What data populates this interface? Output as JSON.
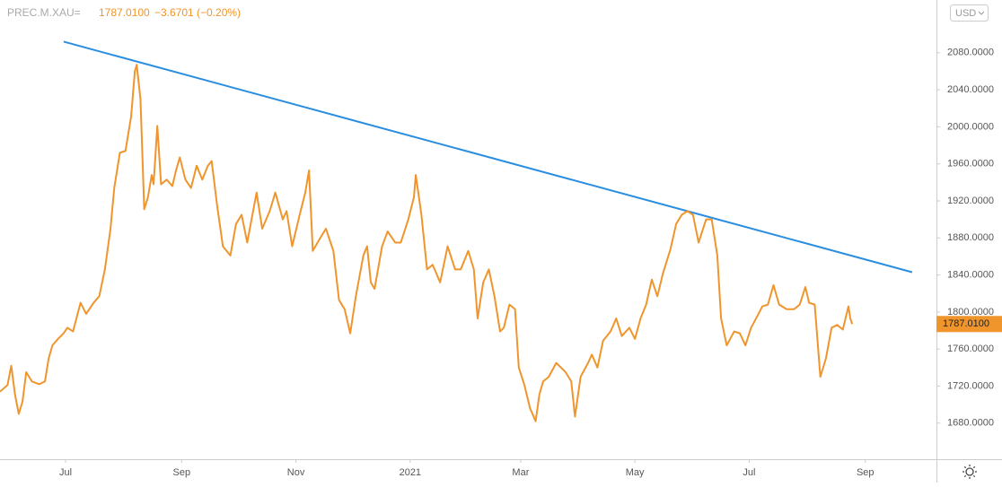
{
  "chart_data": {
    "type": "line",
    "symbol": "PREC.M.XAU=",
    "price_label": "1787.0100",
    "change_label": "−3.6701 (−0.20%)",
    "currency": "USD",
    "color": "#f0952c",
    "x": [
      -35,
      -31,
      -29,
      -27,
      -25,
      -23,
      -21,
      -18,
      -14,
      -11,
      -9,
      -7,
      -4,
      -1,
      1,
      4,
      8,
      11,
      15,
      18,
      21,
      24,
      26,
      29,
      32,
      35,
      37,
      38,
      40,
      42,
      44,
      46,
      47,
      49,
      51,
      54,
      57,
      59,
      61,
      64,
      67,
      70,
      73,
      76,
      78,
      81,
      84,
      88,
      91,
      94,
      97,
      102,
      105,
      109,
      112,
      116,
      118,
      121,
      125,
      128,
      130,
      132,
      136,
      139,
      143,
      146,
      149,
      152,
      155,
      159,
      161,
      163,
      165,
      169,
      172,
      176,
      179,
      183,
      186,
      187,
      190,
      193,
      196,
      200,
      204,
      208,
      211,
      215,
      218,
      220,
      223,
      226,
      229,
      232,
      234,
      237,
      240,
      242,
      245,
      248,
      251,
      253,
      255,
      258,
      262,
      267,
      270,
      272,
      275,
      279,
      281,
      284,
      287,
      291,
      294,
      297,
      301,
      304,
      307,
      310,
      313,
      316,
      319,
      323,
      326,
      329,
      332,
      335,
      338,
      342,
      345,
      348,
      350,
      353,
      357,
      360,
      363,
      366,
      370,
      372,
      375,
      378,
      381,
      385,
      389,
      392,
      395,
      397,
      400,
      403,
      406,
      409,
      412,
      415,
      418,
      419,
      420
    ],
    "values": [
      1714,
      1721,
      1742,
      1711,
      1690,
      1703,
      1735,
      1725,
      1722,
      1725,
      1750,
      1764,
      1771,
      1777,
      1783,
      1779,
      1810,
      1798,
      1810,
      1817,
      1846,
      1890,
      1934,
      1972,
      1974,
      2011,
      2060,
      2067,
      2030,
      1911,
      1924,
      1948,
      1938,
      2001,
      1938,
      1943,
      1936,
      1953,
      1967,
      1943,
      1934,
      1958,
      1943,
      1958,
      1963,
      1914,
      1871,
      1861,
      1895,
      1905,
      1875,
      1929,
      1890,
      1909,
      1929,
      1900,
      1909,
      1871,
      1905,
      1929,
      1953,
      1866,
      1880,
      1890,
      1866,
      1813,
      1803,
      1777,
      1817,
      1861,
      1871,
      1832,
      1825,
      1871,
      1887,
      1875,
      1875,
      1900,
      1924,
      1948,
      1905,
      1846,
      1851,
      1832,
      1871,
      1846,
      1846,
      1866,
      1846,
      1793,
      1832,
      1846,
      1817,
      1779,
      1783,
      1808,
      1803,
      1740,
      1721,
      1696,
      1682,
      1711,
      1725,
      1730,
      1745,
      1735,
      1725,
      1687,
      1730,
      1745,
      1754,
      1740,
      1769,
      1779,
      1793,
      1774,
      1783,
      1771,
      1793,
      1808,
      1835,
      1817,
      1842,
      1868,
      1895,
      1905,
      1909,
      1905,
      1875,
      1900,
      1900,
      1861,
      1793,
      1764,
      1779,
      1777,
      1764,
      1783,
      1798,
      1806,
      1808,
      1829,
      1808,
      1803,
      1803,
      1808,
      1827,
      1810,
      1808,
      1730,
      1750,
      1783,
      1786,
      1781,
      1806,
      1793,
      1787.01
    ],
    "trendline": {
      "x": [
        -1,
        452
      ],
      "values": [
        2092,
        1843
      ],
      "color": "#2a8ee0"
    },
    "xlim": [
      -35,
      465
    ],
    "ylim": [
      1641,
      2137
    ],
    "xticks": [
      {
        "value": 0,
        "label": "Jul"
      },
      {
        "value": 62,
        "label": "Sep"
      },
      {
        "value": 123,
        "label": "Nov"
      },
      {
        "value": 184,
        "label": "2021"
      },
      {
        "value": 243,
        "label": "Mar"
      },
      {
        "value": 304,
        "label": "May"
      },
      {
        "value": 365,
        "label": "Jul"
      },
      {
        "value": 427,
        "label": "Sep"
      }
    ],
    "yticks": [
      {
        "value": 1680,
        "label": "1680.0000"
      },
      {
        "value": 1720,
        "label": "1720.0000"
      },
      {
        "value": 1760,
        "label": "1760.0000"
      },
      {
        "value": 1800,
        "label": "1800.0000"
      },
      {
        "value": 1840,
        "label": "1840.0000"
      },
      {
        "value": 1880,
        "label": "1880.0000"
      },
      {
        "value": 1920,
        "label": "1920.0000"
      },
      {
        "value": 1960,
        "label": "1960.0000"
      },
      {
        "value": 2000,
        "label": "2000.0000"
      },
      {
        "value": 2040,
        "label": "2040.0000"
      },
      {
        "value": 2080,
        "label": "2080.0000"
      }
    ],
    "grid": false
  }
}
